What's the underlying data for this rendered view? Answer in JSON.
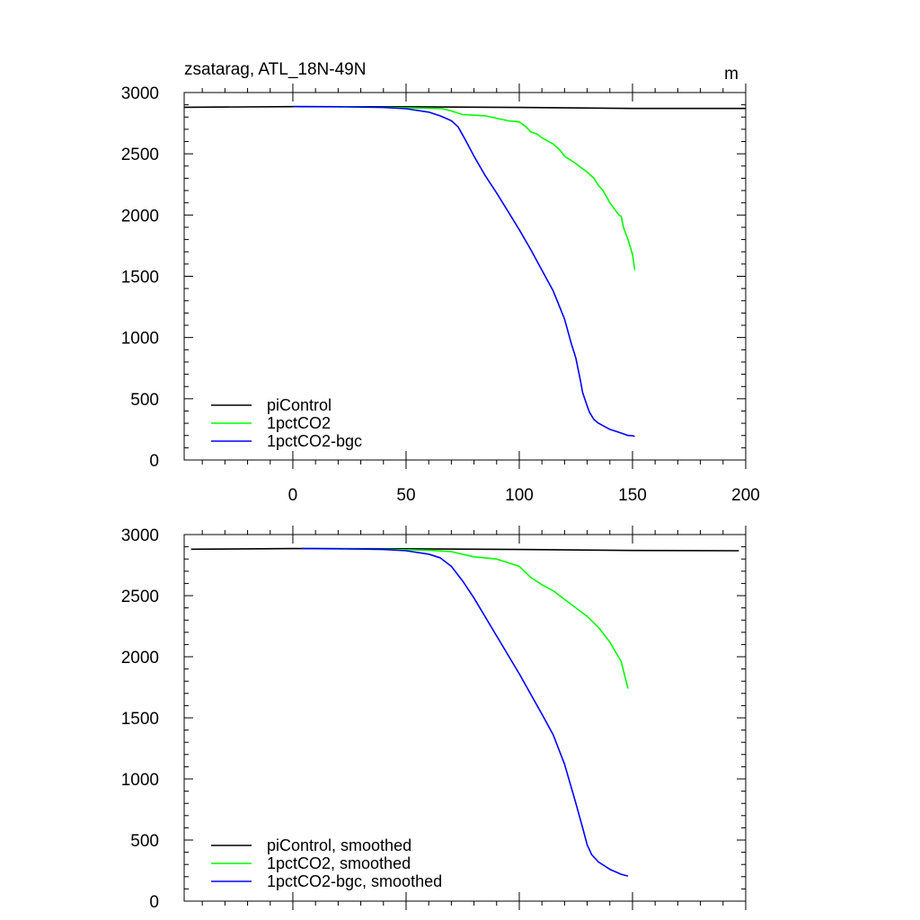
{
  "chart_data": [
    {
      "type": "line",
      "title": "zsatarag, ATL_18N-49N",
      "units": "m",
      "xlim": [
        -48,
        200
      ],
      "ylim": [
        0,
        3000
      ],
      "xticks": [
        0,
        50,
        100,
        150,
        200
      ],
      "xtick_labels": [
        "0",
        "50",
        "100",
        "150",
        "200"
      ],
      "yticks": [
        0,
        500,
        1000,
        1500,
        2000,
        2500,
        3000
      ],
      "ytick_labels": [
        "0",
        "500",
        "1000",
        "1500",
        "2000",
        "2500",
        "3000"
      ],
      "legend_position": "bottom-left",
      "grid": false,
      "series": [
        {
          "name": "piControl",
          "color": "#000000",
          "x": [
            -48,
            0,
            50,
            100,
            150,
            200
          ],
          "y": [
            2880,
            2885,
            2884,
            2878,
            2870,
            2870
          ]
        },
        {
          "name": "1pctCO2",
          "color": "#00ff00",
          "x": [
            0,
            20,
            40,
            60,
            66,
            70,
            75,
            80,
            85,
            90,
            95,
            100,
            103,
            105,
            108,
            110,
            115,
            118,
            120,
            125,
            130,
            133,
            135,
            137,
            140,
            142,
            144,
            145,
            146,
            148,
            150,
            151
          ],
          "y": [
            2885,
            2884,
            2880,
            2872,
            2868,
            2850,
            2820,
            2815,
            2810,
            2790,
            2770,
            2760,
            2720,
            2680,
            2660,
            2630,
            2580,
            2530,
            2480,
            2420,
            2350,
            2300,
            2240,
            2200,
            2100,
            2050,
            2000,
            1990,
            1900,
            1800,
            1680,
            1550
          ]
        },
        {
          "name": "1pctCO2-bgc",
          "color": "#0000ff",
          "x": [
            0,
            20,
            40,
            50,
            60,
            65,
            70,
            73,
            76,
            80,
            85,
            90,
            95,
            100,
            105,
            110,
            115,
            120,
            123,
            125,
            127,
            128,
            130,
            131,
            132,
            133,
            135,
            140,
            145,
            148,
            150,
            151
          ],
          "y": [
            2885,
            2884,
            2878,
            2868,
            2840,
            2810,
            2770,
            2720,
            2620,
            2480,
            2320,
            2180,
            2030,
            1880,
            1720,
            1550,
            1380,
            1150,
            950,
            830,
            650,
            550,
            440,
            390,
            360,
            330,
            300,
            250,
            220,
            200,
            198,
            193
          ]
        }
      ]
    },
    {
      "type": "line",
      "title": "",
      "xlim": [
        -48,
        200
      ],
      "ylim": [
        0,
        3000
      ],
      "xticks": [
        0,
        50,
        100,
        150,
        200
      ],
      "yticks": [
        0,
        500,
        1000,
        1500,
        2000,
        2500,
        3000
      ],
      "ytick_labels": [
        "0",
        "500",
        "1000",
        "1500",
        "2000",
        "2500",
        "3000"
      ],
      "legend_position": "bottom-left",
      "grid": false,
      "series": [
        {
          "name": "piControl, smoothed",
          "color": "#000000",
          "x": [
            -45,
            0,
            50,
            100,
            150,
            197
          ],
          "y": [
            2880,
            2885,
            2884,
            2878,
            2870,
            2868
          ]
        },
        {
          "name": "1pctCO2, smoothed",
          "color": "#00ff00",
          "x": [
            4,
            20,
            40,
            60,
            70,
            80,
            90,
            100,
            105,
            110,
            115,
            120,
            125,
            130,
            135,
            140,
            145,
            148
          ],
          "y": [
            2885,
            2884,
            2880,
            2872,
            2860,
            2818,
            2800,
            2740,
            2650,
            2590,
            2540,
            2470,
            2400,
            2330,
            2240,
            2120,
            1960,
            1740
          ]
        },
        {
          "name": "1pctCO2-bgc, smoothed",
          "color": "#0000ff",
          "x": [
            4,
            20,
            40,
            50,
            60,
            65,
            70,
            75,
            80,
            90,
            100,
            110,
            115,
            120,
            125,
            128,
            130,
            132,
            135,
            140,
            145,
            148
          ],
          "y": [
            2885,
            2884,
            2878,
            2868,
            2840,
            2810,
            2740,
            2620,
            2480,
            2170,
            1860,
            1530,
            1360,
            1120,
            800,
            600,
            460,
            380,
            320,
            260,
            220,
            205
          ]
        }
      ]
    }
  ]
}
